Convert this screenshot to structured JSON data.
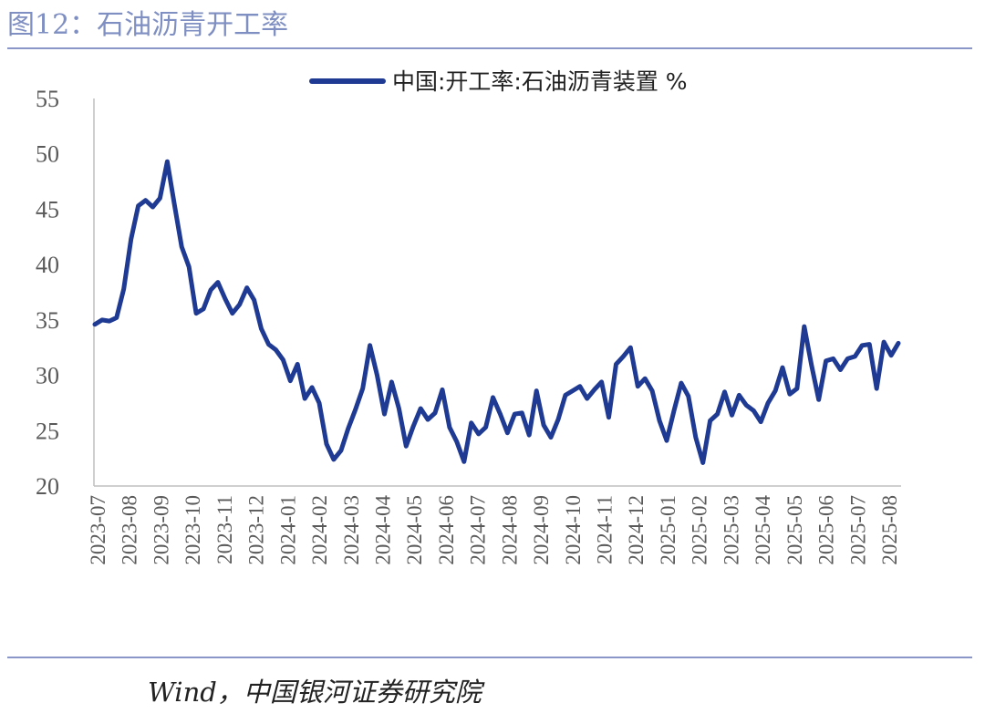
{
  "figure": {
    "title": "图12：石油沥青开工率",
    "source": "Wind，中国银河证券研究院"
  },
  "chart_data": {
    "type": "line",
    "legend": {
      "position": "top-center"
    },
    "grid": false,
    "ylim": [
      20,
      55
    ],
    "yticks": [
      20,
      25,
      30,
      35,
      40,
      45,
      50,
      55
    ],
    "x_tick_labels": [
      "2023-07",
      "2023-08",
      "2023-09",
      "2023-10",
      "2023-11",
      "2023-12",
      "2024-01",
      "2024-02",
      "2024-03",
      "2024-04",
      "2024-05",
      "2024-06",
      "2024-07",
      "2024-08",
      "2024-09",
      "2024-10",
      "2024-11",
      "2024-12",
      "2025-01",
      "2025-02",
      "2025-03",
      "2025-04",
      "2025-05",
      "2025-06",
      "2025-07",
      "2025-08"
    ],
    "series": [
      {
        "name": "中国:开工率:石油沥青装置 %",
        "color": "#1f3a93",
        "values": [
          34.6,
          35.0,
          34.9,
          35.2,
          37.8,
          42.3,
          45.3,
          45.8,
          45.2,
          46.0,
          49.3,
          45.4,
          41.6,
          39.8,
          35.6,
          36.0,
          37.7,
          38.4,
          36.9,
          35.6,
          36.4,
          37.9,
          36.8,
          34.2,
          32.8,
          32.3,
          31.4,
          29.5,
          31.0,
          27.9,
          28.9,
          27.5,
          23.8,
          22.4,
          23.2,
          25.2,
          26.9,
          28.8,
          32.7,
          30.0,
          26.5,
          29.4,
          27.0,
          23.6,
          25.4,
          27.0,
          26.0,
          26.6,
          28.7,
          25.3,
          24.0,
          22.2,
          25.7,
          24.7,
          25.3,
          28.0,
          26.5,
          24.8,
          26.5,
          26.6,
          24.6,
          28.6,
          25.5,
          24.4,
          26.0,
          28.2,
          28.6,
          29.0,
          27.9,
          28.7,
          29.4,
          26.2,
          31.0,
          31.7,
          32.5,
          29.0,
          29.7,
          28.6,
          25.9,
          24.1,
          26.8,
          29.3,
          28.1,
          24.4,
          22.1,
          25.9,
          26.5,
          28.5,
          26.4,
          28.2,
          27.3,
          26.8,
          25.8,
          27.5,
          28.6,
          30.7,
          28.3,
          28.8,
          34.4,
          30.9,
          27.8,
          31.3,
          31.5,
          30.5,
          31.5,
          31.7,
          32.7,
          32.8,
          28.8,
          33.0,
          31.8,
          32.9
        ]
      }
    ]
  }
}
